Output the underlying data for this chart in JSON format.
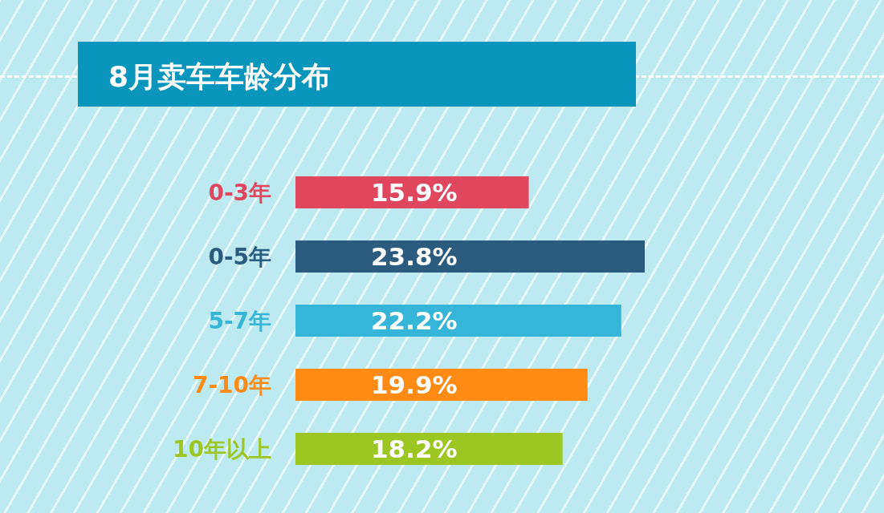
{
  "chart_data": {
    "type": "bar",
    "title": "8月卖车车龄分布",
    "orientation": "horizontal",
    "categories": [
      "0-3年",
      "0-5年",
      "5-7年",
      "7-10年",
      "10年以上"
    ],
    "values": [
      15.9,
      23.8,
      22.2,
      19.9,
      18.2
    ],
    "value_labels": [
      "15.9%",
      "23.8%",
      "22.2%",
      "19.9%",
      "18.2%"
    ],
    "colors": [
      "#e0475f",
      "#2b5c80",
      "#35b6d8",
      "#ff8a14",
      "#9cc722"
    ]
  }
}
